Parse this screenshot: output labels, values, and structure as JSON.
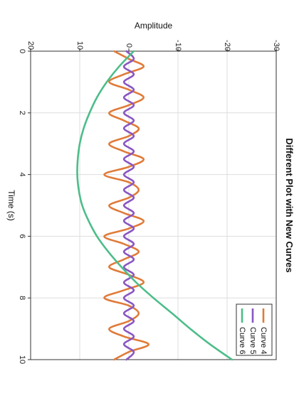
{
  "chart_data": {
    "type": "line",
    "orientation": "rotated-90-clockwise",
    "title": "Different Plot with New Curves",
    "xlabel": "Time (s)",
    "ylabel": "Amplitude",
    "xlim": [
      0,
      10
    ],
    "ylim": [
      -30,
      20
    ],
    "xticks": [
      "0",
      "2",
      "4",
      "6",
      "8",
      "10"
    ],
    "yticks": [
      "-30",
      "-20",
      "-10",
      "0",
      "10",
      "20"
    ],
    "grid": true,
    "legend_position": "lower-right",
    "series": [
      {
        "name": "Curve 4",
        "color": "#e07b39",
        "x": [
          0,
          0.25,
          0.5,
          0.75,
          1,
          1.25,
          1.5,
          1.75,
          2,
          2.25,
          2.5,
          2.75,
          3,
          3.25,
          3.5,
          3.75,
          4,
          4.25,
          4.5,
          4.75,
          5,
          5.25,
          5.5,
          5.75,
          6,
          6.25,
          6.5,
          6.75,
          7,
          7.25,
          7.5,
          7.75,
          8,
          8.25,
          8.5,
          8.75,
          9,
          9.25,
          9.5,
          9.75,
          10
        ],
        "y": [
          3,
          0,
          -3,
          1,
          4,
          0,
          -3,
          0,
          4,
          1,
          -2,
          0,
          4,
          1,
          -3,
          0,
          5,
          0,
          -2,
          0,
          4,
          1,
          -3,
          0,
          5,
          1,
          -2,
          1,
          4,
          0,
          -3,
          1,
          5,
          0,
          -2,
          0,
          4,
          1,
          -4,
          0,
          3
        ]
      },
      {
        "name": "Curve 5",
        "color": "#8a56c2",
        "x": [
          0,
          0.25,
          0.5,
          0.75,
          1,
          1.25,
          1.5,
          1.75,
          2,
          2.25,
          2.5,
          2.75,
          3,
          3.25,
          3.5,
          3.75,
          4,
          4.25,
          4.5,
          4.75,
          5,
          5.25,
          5.5,
          5.75,
          6,
          6.25,
          6.5,
          6.75,
          7,
          7.25,
          7.5,
          7.75,
          8,
          8.25,
          8.5,
          8.75,
          9,
          9.25,
          9.5,
          9.75,
          10
        ],
        "y": [
          0.5,
          -1,
          1,
          -1,
          1,
          -1,
          1,
          -1,
          1,
          -1,
          1,
          -1,
          1,
          -1,
          1,
          -1,
          1,
          -1,
          1,
          -1,
          1,
          -1,
          1,
          -1,
          1,
          -1,
          1,
          -1,
          1,
          -1,
          1,
          -1,
          1,
          -1,
          1,
          -1,
          1,
          -1,
          1,
          -1,
          0.5
        ]
      },
      {
        "name": "Curve 6",
        "color": "#4dbd8a",
        "x": [
          0,
          0.5,
          1,
          1.5,
          2,
          2.5,
          3,
          3.5,
          4,
          4.5,
          5,
          5.5,
          6,
          6.5,
          7,
          7.5,
          8,
          8.5,
          9,
          9.5,
          10
        ],
        "y": [
          -1,
          2,
          4.5,
          6.5,
          8,
          9.2,
          10,
          10.4,
          10.5,
          10.2,
          9.5,
          8.2,
          6.5,
          4.2,
          1.5,
          -1.5,
          -5,
          -8.8,
          -12.5,
          -16.5,
          -21
        ]
      }
    ]
  }
}
